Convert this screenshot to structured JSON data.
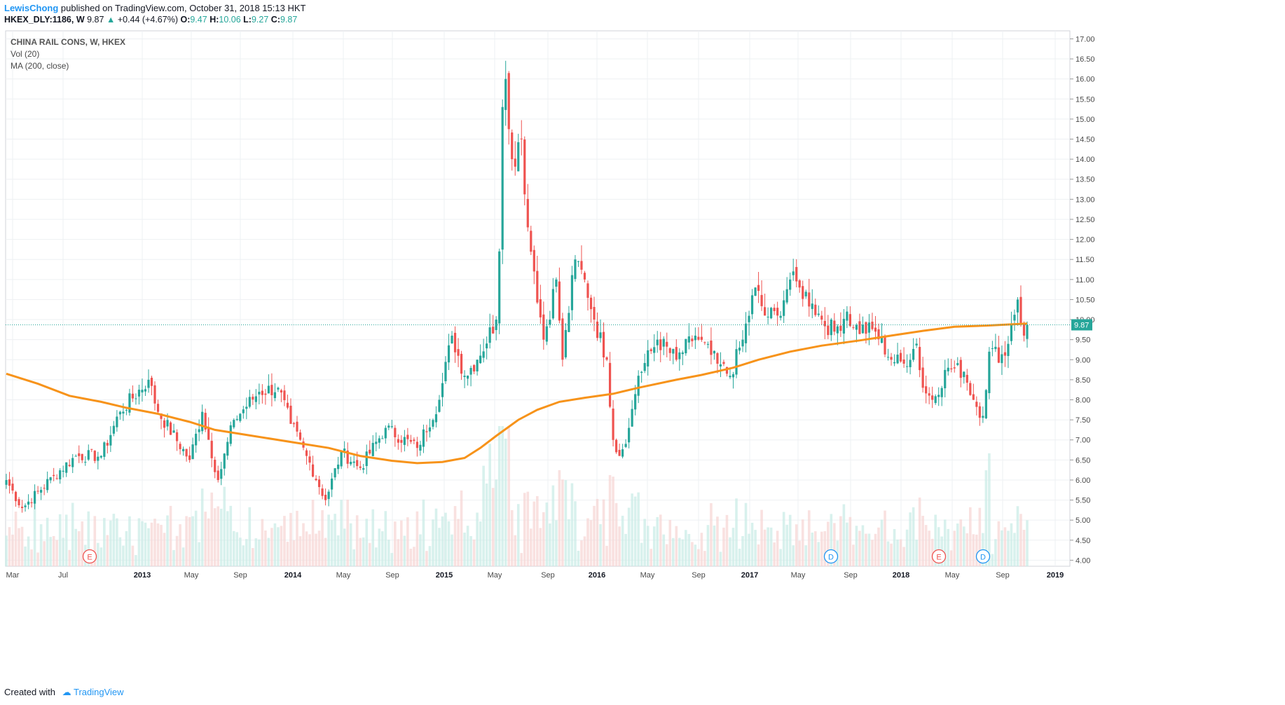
{
  "publish": {
    "user": "LewisChong",
    "text": "published on TradingView.com, October 31, 2018 15:13 HKT"
  },
  "ohlc": {
    "symbol": "HKEX_DLY:1186, W",
    "last": "9.87",
    "arrow": "▲",
    "change": "+0.44 (+4.67%)",
    "o_label": "O:",
    "o": "9.47",
    "h_label": "H:",
    "h": "10.06",
    "l_label": "L:",
    "l": "9.27",
    "c_label": "C:",
    "c": "9.87"
  },
  "legend": {
    "title": "CHINA RAIL CONS, W, HKEX",
    "vol": "Vol (20)",
    "ma": "MA (200, close)"
  },
  "footer": {
    "created": "Created with",
    "brand": "TradingView"
  },
  "colors": {
    "up": "#26a69a",
    "down": "#ef5350",
    "ma": "#f7931a",
    "grid": "#eef0f3",
    "price_label": "#26a69a"
  },
  "chart_data": {
    "type": "candlestick",
    "title": "CHINA RAIL CONS, W, HKEX",
    "ylim": [
      3.85,
      17.2
    ],
    "yticks": [
      "17.00",
      "16.50",
      "16.00",
      "15.50",
      "15.00",
      "14.50",
      "14.00",
      "13.50",
      "13.00",
      "12.50",
      "12.00",
      "11.50",
      "11.00",
      "10.50",
      "10.00",
      "9.50",
      "9.00",
      "8.50",
      "8.00",
      "7.50",
      "7.00",
      "6.50",
      "6.00",
      "5.50",
      "5.00",
      "4.50",
      "4.00"
    ],
    "xticks": [
      "Mar",
      "Jul",
      "2013",
      "May",
      "Sep",
      "2014",
      "May",
      "Sep",
      "2015",
      "May",
      "Sep",
      "2016",
      "May",
      "Sep",
      "2017",
      "May",
      "Sep",
      "2018",
      "May",
      "Sep",
      "2019"
    ],
    "last_price": "9.87",
    "close_anchors": [
      [
        0,
        6.0
      ],
      [
        5,
        5.3
      ],
      [
        15,
        6.1
      ],
      [
        22,
        6.6
      ],
      [
        30,
        6.6
      ],
      [
        36,
        7.7
      ],
      [
        45,
        8.5
      ],
      [
        48,
        7.7
      ],
      [
        58,
        6.5
      ],
      [
        62,
        7.7
      ],
      [
        67,
        6.0
      ],
      [
        72,
        7.5
      ],
      [
        80,
        8.2
      ],
      [
        86,
        8.3
      ],
      [
        90,
        7.4
      ],
      [
        95,
        6.6
      ],
      [
        101,
        5.5
      ],
      [
        106,
        6.7
      ],
      [
        112,
        6.3
      ],
      [
        120,
        7.3
      ],
      [
        130,
        6.8
      ],
      [
        137,
        8.0
      ],
      [
        141,
        9.6
      ],
      [
        145,
        8.6
      ],
      [
        149,
        9.0
      ],
      [
        155,
        10.0
      ],
      [
        156,
        11.7
      ],
      [
        157,
        15.3
      ],
      [
        158,
        16.0
      ],
      [
        160,
        14.0
      ],
      [
        163,
        14.5
      ],
      [
        165,
        12.3
      ],
      [
        167,
        11.2
      ],
      [
        170,
        9.5
      ],
      [
        174,
        11.0
      ],
      [
        176,
        9.0
      ],
      [
        180,
        11.5
      ],
      [
        183,
        11.0
      ],
      [
        186,
        10.0
      ],
      [
        190,
        9.0
      ],
      [
        192,
        7.0
      ],
      [
        194,
        6.6
      ],
      [
        197,
        7.3
      ],
      [
        200,
        8.6
      ],
      [
        206,
        9.5
      ],
      [
        212,
        9.0
      ],
      [
        218,
        9.6
      ],
      [
        225,
        8.9
      ],
      [
        229,
        8.6
      ],
      [
        233,
        9.5
      ],
      [
        237,
        10.8
      ],
      [
        240,
        10.1
      ],
      [
        244,
        10.1
      ],
      [
        248,
        11.0
      ],
      [
        251,
        10.8
      ],
      [
        255,
        10.4
      ],
      [
        258,
        10.0
      ],
      [
        262,
        9.7
      ],
      [
        266,
        10.2
      ],
      [
        268,
        9.8
      ],
      [
        275,
        9.7
      ],
      [
        280,
        9.0
      ],
      [
        284,
        8.9
      ],
      [
        288,
        9.4
      ],
      [
        290,
        8.3
      ],
      [
        293,
        8.0
      ],
      [
        298,
        8.8
      ],
      [
        303,
        8.7
      ],
      [
        306,
        8.0
      ],
      [
        309,
        7.6
      ],
      [
        311,
        9.2
      ],
      [
        316,
        9.1
      ],
      [
        318,
        9.9
      ],
      [
        320,
        10.5
      ],
      [
        322,
        9.6
      ],
      [
        323,
        9.87
      ]
    ],
    "ma_points": [
      [
        0,
        8.65
      ],
      [
        10,
        8.4
      ],
      [
        20,
        8.1
      ],
      [
        30,
        7.95
      ],
      [
        38,
        7.8
      ],
      [
        48,
        7.65
      ],
      [
        58,
        7.45
      ],
      [
        66,
        7.25
      ],
      [
        78,
        7.1
      ],
      [
        90,
        6.95
      ],
      [
        102,
        6.8
      ],
      [
        112,
        6.6
      ],
      [
        122,
        6.48
      ],
      [
        130,
        6.42
      ],
      [
        138,
        6.45
      ],
      [
        145,
        6.55
      ],
      [
        150,
        6.8
      ],
      [
        155,
        7.1
      ],
      [
        162,
        7.5
      ],
      [
        168,
        7.75
      ],
      [
        175,
        7.95
      ],
      [
        183,
        8.05
      ],
      [
        192,
        8.15
      ],
      [
        200,
        8.3
      ],
      [
        212,
        8.5
      ],
      [
        220,
        8.62
      ],
      [
        230,
        8.8
      ],
      [
        238,
        9.0
      ],
      [
        248,
        9.2
      ],
      [
        258,
        9.35
      ],
      [
        270,
        9.48
      ],
      [
        280,
        9.6
      ],
      [
        290,
        9.72
      ],
      [
        300,
        9.82
      ],
      [
        310,
        9.85
      ],
      [
        323,
        9.9
      ]
    ],
    "events": [
      {
        "label": "E",
        "x": 128,
        "kind": "earnings"
      },
      {
        "label": "D",
        "x": 1186,
        "kind": "dividend"
      },
      {
        "label": "E",
        "x": 1340,
        "kind": "earnings"
      },
      {
        "label": "D",
        "x": 1403,
        "kind": "dividend"
      }
    ]
  }
}
